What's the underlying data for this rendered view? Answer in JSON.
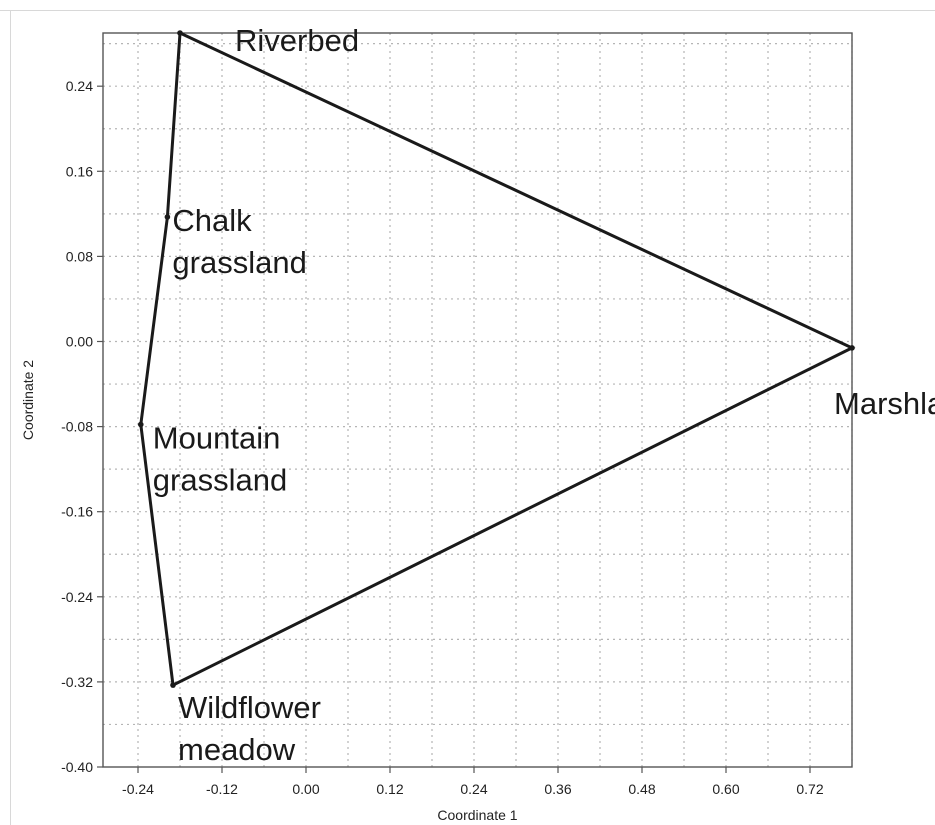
{
  "chart_data": {
    "type": "scatter",
    "title": "",
    "xlabel": "Coordinate 1",
    "ylabel": "Coordinate 2",
    "xlim": [
      -0.29,
      0.78
    ],
    "ylim": [
      -0.4,
      0.29
    ],
    "x_ticks": [
      "-0.24",
      "-0.12",
      "0.00",
      "0.12",
      "0.24",
      "0.36",
      "0.48",
      "0.60",
      "0.72"
    ],
    "y_ticks": [
      "0.24",
      "0.16",
      "0.08",
      "0.00",
      "-0.08",
      "-0.16",
      "-0.24",
      "-0.32",
      "-0.40"
    ],
    "grid": true,
    "hull": true,
    "points": [
      {
        "label": [
          "Riverbed"
        ],
        "x": -0.18,
        "y": 0.29
      },
      {
        "label": [
          "Chalk",
          "grassland"
        ],
        "x": -0.198,
        "y": 0.117
      },
      {
        "label": [
          "Mountain",
          "grassland"
        ],
        "x": -0.236,
        "y": -0.078
      },
      {
        "label": [
          "Wildflower",
          "meadow"
        ],
        "x": -0.19,
        "y": -0.323
      },
      {
        "label": [
          "Marshland"
        ],
        "x": 0.78,
        "y": -0.006
      }
    ]
  }
}
